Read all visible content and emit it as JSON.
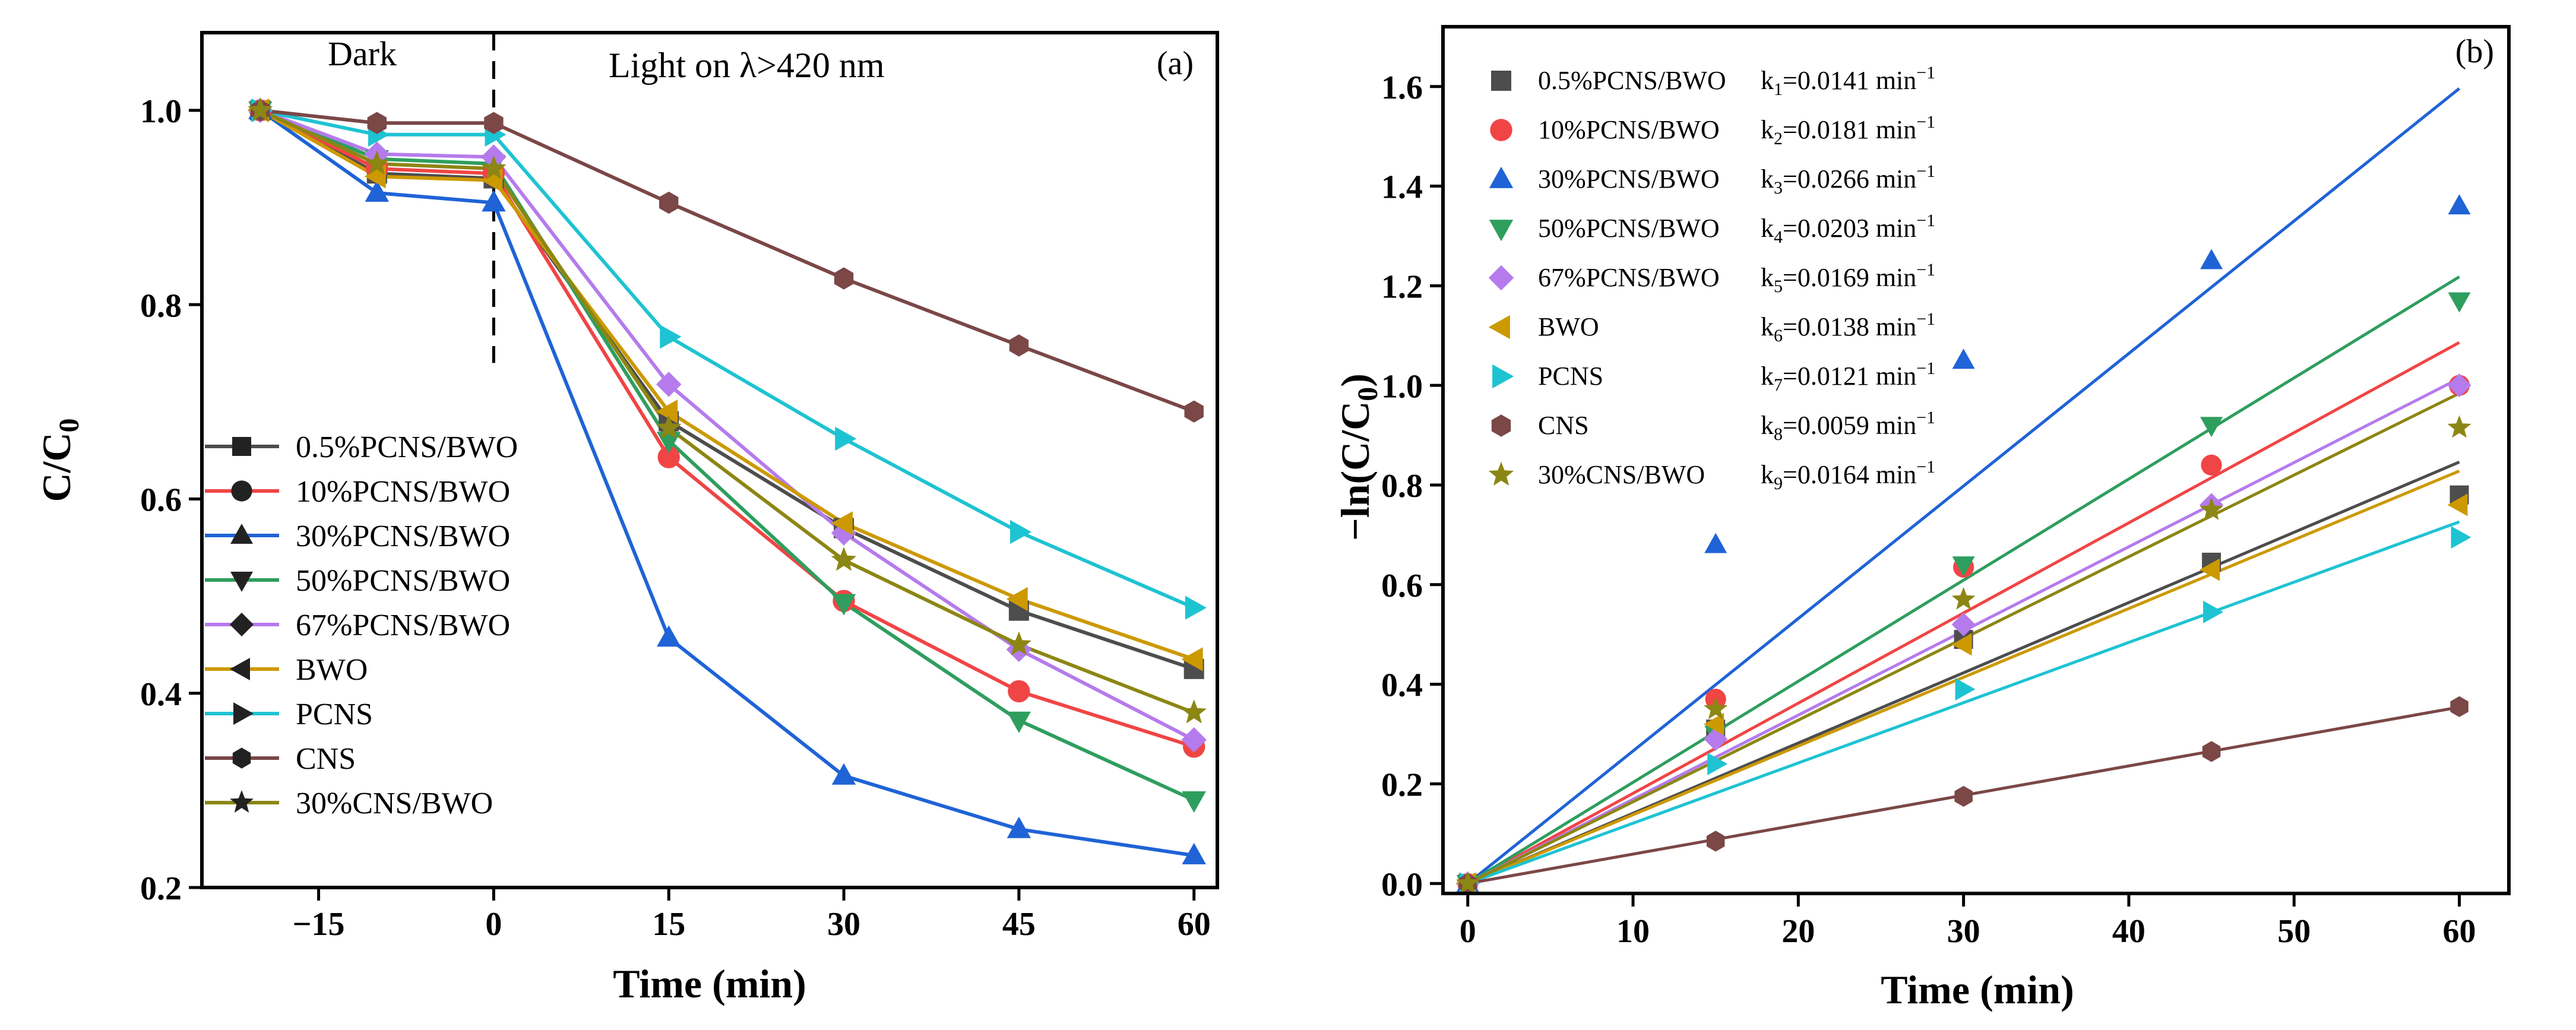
{
  "colors": {
    "s1": "#4d4d4d",
    "s2": "#f04545",
    "s3": "#1f63d6",
    "s4": "#2e9e5e",
    "s5": "#b57bec",
    "s6": "#cc9900",
    "s7": "#1ec3d2",
    "s8": "#7b4747",
    "s9": "#8c8614"
  },
  "chart_data": [
    {
      "panel_label": "(a)",
      "type": "line",
      "xlabel": "Time (min)",
      "ylabel": "C/C0",
      "xlim": [
        -25,
        62
      ],
      "ylim": [
        0.2,
        1.08
      ],
      "xticks": [
        -15,
        0,
        15,
        30,
        45,
        60
      ],
      "yticks": [
        0.2,
        0.4,
        0.6,
        0.8,
        1.0
      ],
      "xtick_labels": [
        "−15",
        "0",
        "15",
        "30",
        "45",
        "60"
      ],
      "ytick_labels": [
        "0.2",
        "0.4",
        "0.6",
        "0.8",
        "1.0"
      ],
      "annotations": {
        "dark": "Dark",
        "light": "Light on  λ>420 nm"
      },
      "legend_position": "lower-left",
      "x": [
        -20,
        -10,
        0,
        15,
        30,
        45,
        60
      ],
      "series": [
        {
          "name": "0.5%PCNS/BWO",
          "marker": "square",
          "values": [
            1.0,
            0.935,
            0.93,
            0.68,
            0.57,
            0.485,
            0.425
          ]
        },
        {
          "name": "10%PCNS/BWO",
          "marker": "circle",
          "values": [
            1.0,
            0.94,
            0.935,
            0.643,
            0.495,
            0.402,
            0.345
          ]
        },
        {
          "name": "30%PCNS/BWO",
          "marker": "triangle-up",
          "values": [
            1.0,
            0.915,
            0.905,
            0.457,
            0.315,
            0.26,
            0.233
          ]
        },
        {
          "name": "50%PCNS/BWO",
          "marker": "triangle-down",
          "values": [
            1.0,
            0.95,
            0.945,
            0.66,
            0.493,
            0.372,
            0.29
          ]
        },
        {
          "name": "67%PCNS/BWO",
          "marker": "diamond",
          "values": [
            1.0,
            0.955,
            0.952,
            0.718,
            0.565,
            0.445,
            0.352
          ]
        },
        {
          "name": "BWO",
          "marker": "triangle-left",
          "values": [
            1.0,
            0.932,
            0.928,
            0.69,
            0.575,
            0.497,
            0.435
          ]
        },
        {
          "name": "PCNS",
          "marker": "triangle-right",
          "values": [
            1.0,
            0.975,
            0.975,
            0.767,
            0.662,
            0.566,
            0.488
          ]
        },
        {
          "name": "CNS",
          "marker": "hexagon",
          "values": [
            1.0,
            0.987,
            0.987,
            0.905,
            0.827,
            0.758,
            0.69
          ]
        },
        {
          "name": "30%CNS/BWO",
          "marker": "star",
          "values": [
            1.0,
            0.945,
            0.94,
            0.673,
            0.537,
            0.45,
            0.38
          ]
        }
      ]
    },
    {
      "panel_label": "(b)",
      "type": "scatter",
      "xlabel": "Time (min)",
      "ylabel": "−ln(C/C0)",
      "xlim": [
        -1.5,
        63
      ],
      "ylim": [
        -0.02,
        1.72
      ],
      "xticks": [
        0,
        10,
        20,
        30,
        40,
        50,
        60
      ],
      "yticks": [
        0.0,
        0.2,
        0.4,
        0.6,
        0.8,
        1.0,
        1.2,
        1.4,
        1.6
      ],
      "xtick_labels": [
        "0",
        "10",
        "20",
        "30",
        "40",
        "50",
        "60"
      ],
      "ytick_labels": [
        "0.0",
        "0.2",
        "0.4",
        "0.6",
        "0.8",
        "1.0",
        "1.2",
        "1.4",
        "1.6"
      ],
      "legend_position": "top-left",
      "x": [
        0,
        15,
        30,
        45,
        60
      ],
      "series": [
        {
          "name": "0.5%PCNS/BWO",
          "k_sub": "1",
          "k_value": "=0.0141 min",
          "k_unit_sup": "−1",
          "slope": 0.0141,
          "marker": "square",
          "values": [
            0.0,
            0.31,
            0.49,
            0.645,
            0.78
          ]
        },
        {
          "name": "10%PCNS/BWO",
          "k_sub": "2",
          "k_value": "=0.0181 min",
          "k_unit_sup": "−1",
          "slope": 0.0181,
          "marker": "circle",
          "values": [
            0.0,
            0.37,
            0.635,
            0.84,
            1.0
          ]
        },
        {
          "name": "30%PCNS/BWO",
          "k_sub": "3",
          "k_value": "=0.0266 min",
          "k_unit_sup": "−1",
          "slope": 0.0266,
          "marker": "triangle-up",
          "values": [
            0.0,
            0.68,
            1.05,
            1.25,
            1.36
          ]
        },
        {
          "name": "50%PCNS/BWO",
          "k_sub": "4",
          "k_value": "=0.0203 min",
          "k_unit_sup": "−1",
          "slope": 0.0203,
          "marker": "triangle-down",
          "values": [
            0.0,
            0.3,
            0.64,
            0.92,
            1.17
          ]
        },
        {
          "name": "67%PCNS/BWO",
          "k_sub": "5",
          "k_value": "=0.0169 min",
          "k_unit_sup": "−1",
          "slope": 0.0169,
          "marker": "diamond",
          "values": [
            0.0,
            0.29,
            0.52,
            0.76,
            1.0
          ]
        },
        {
          "name": "BWO",
          "k_sub": "6",
          "k_value": "=0.0138 min",
          "k_unit_sup": "−1",
          "slope": 0.0138,
          "marker": "triangle-left",
          "values": [
            0.0,
            0.32,
            0.48,
            0.63,
            0.76
          ]
        },
        {
          "name": "PCNS",
          "k_sub": "7",
          "k_value": "=0.0121 min",
          "k_unit_sup": "−1",
          "slope": 0.0121,
          "marker": "triangle-right",
          "values": [
            0.0,
            0.24,
            0.39,
            0.545,
            0.695
          ]
        },
        {
          "name": "CNS",
          "k_sub": "8",
          "k_value": "=0.0059 min",
          "k_unit_sup": "−1",
          "slope": 0.0059,
          "marker": "hexagon",
          "values": [
            0.0,
            0.085,
            0.175,
            0.265,
            0.355
          ]
        },
        {
          "name": "30%CNS/BWO",
          "k_sub": "9",
          "k_value": "=0.0164 min",
          "k_unit_sup": "−1",
          "slope": 0.0164,
          "marker": "star",
          "values": [
            0.0,
            0.35,
            0.57,
            0.75,
            0.915
          ]
        }
      ]
    }
  ]
}
